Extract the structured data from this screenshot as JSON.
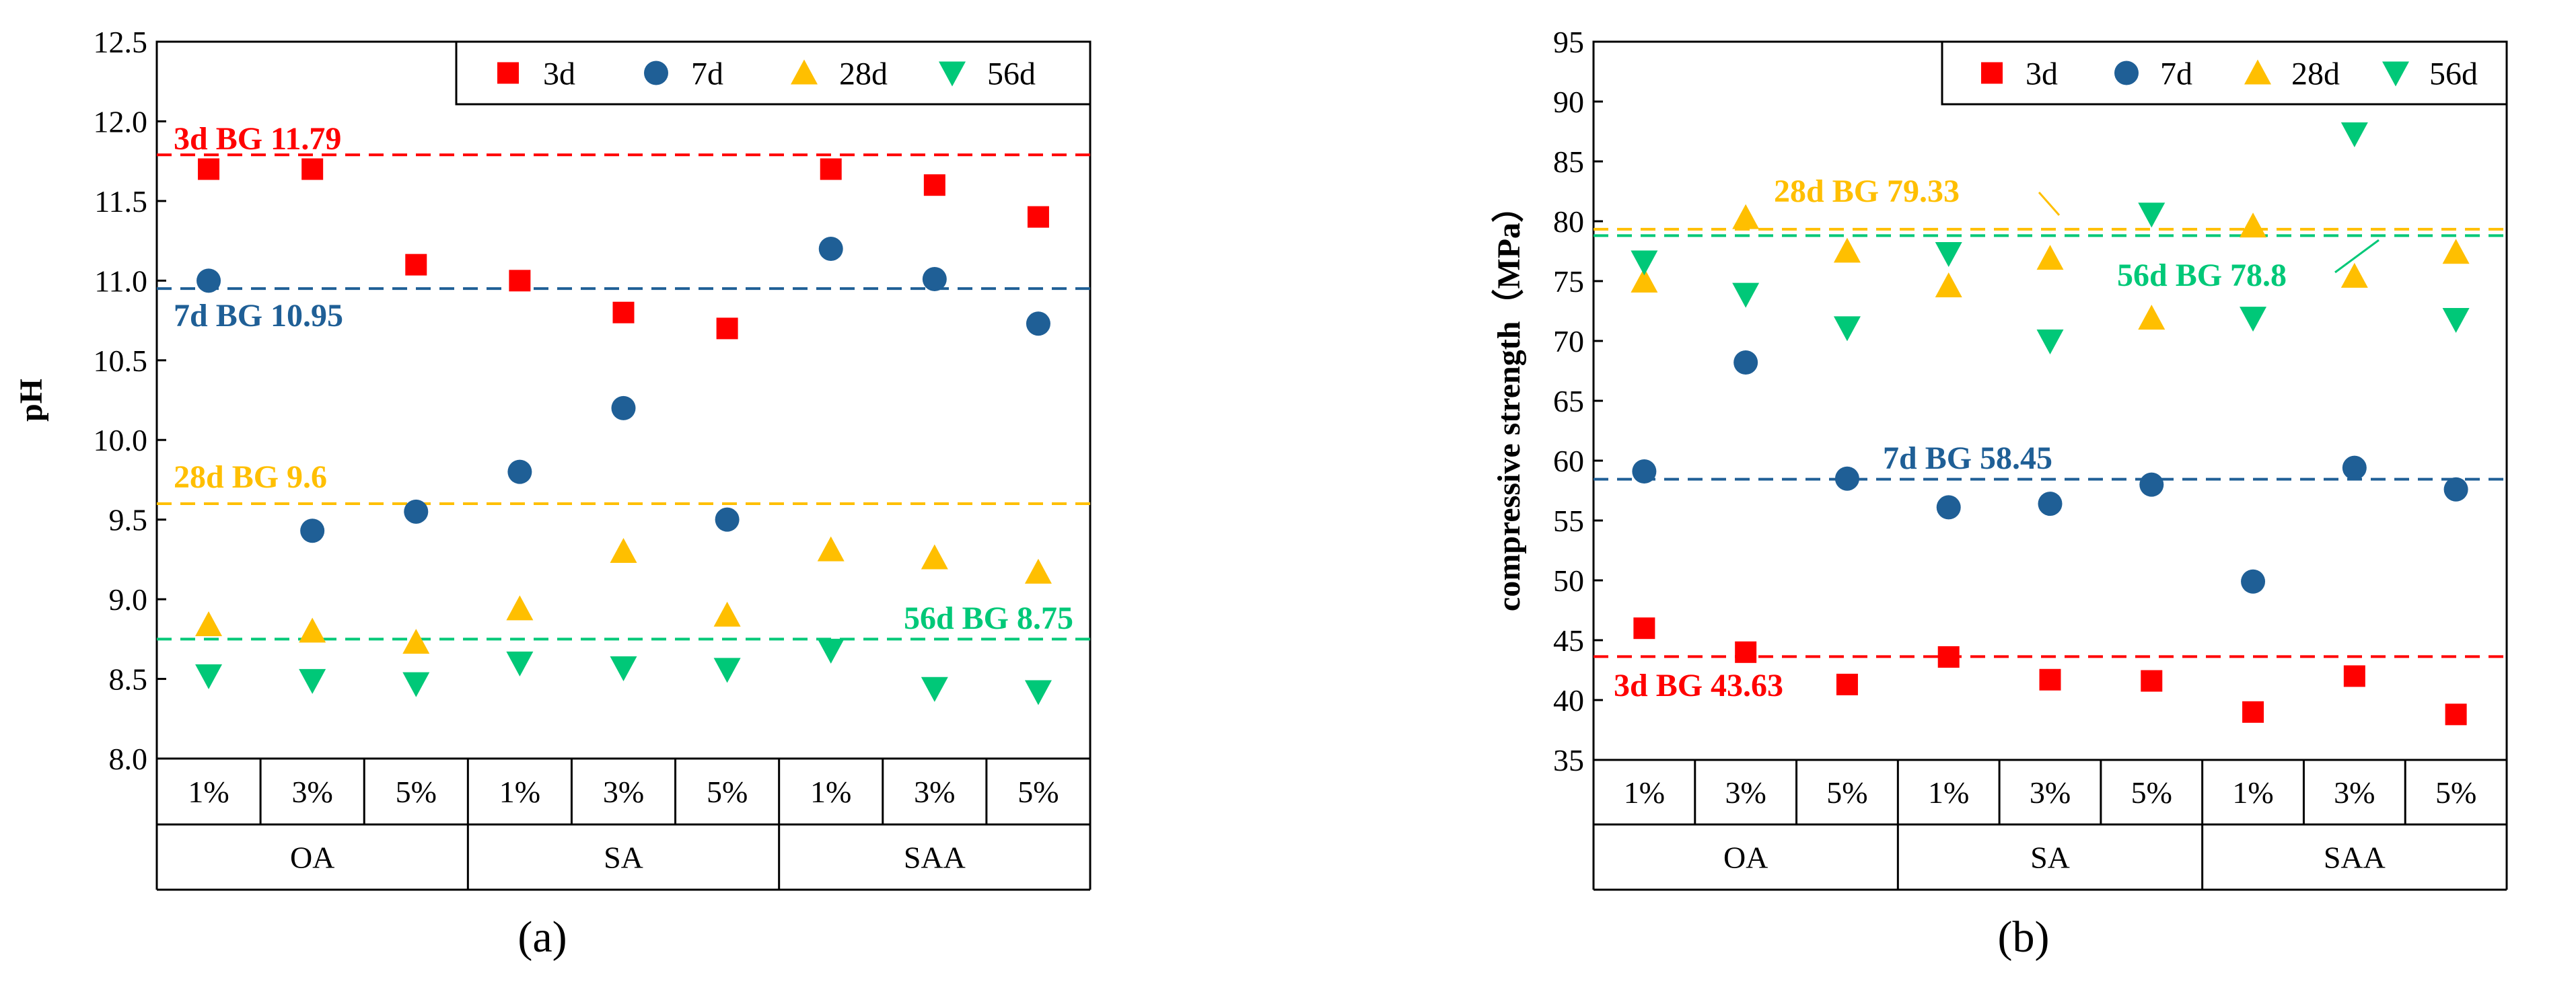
{
  "colors": {
    "3d": "#ff0000",
    "7d": "#1f5f96",
    "28d": "#ffbf00",
    "56d": "#00c878",
    "axis": "#000000"
  },
  "chart_data": [
    {
      "type": "scatter",
      "panel_label": "(a)",
      "ylabel": "pH",
      "ylim": [
        8.0,
        12.5
      ],
      "ytick_step": 0.5,
      "ytick_labels": [
        "8.0",
        "8.5",
        "9.0",
        "9.5",
        "10.0",
        "10.5",
        "11.0",
        "11.5",
        "12.0",
        "12.5"
      ],
      "groups": [
        "OA",
        "SA",
        "SAA"
      ],
      "categories": [
        "1%",
        "3%",
        "5%",
        "1%",
        "3%",
        "5%",
        "1%",
        "3%",
        "5%"
      ],
      "legend": [
        "3d",
        "7d",
        "28d",
        "56d"
      ],
      "legend_position": "top-right",
      "series": [
        {
          "name": "3d",
          "marker": "square",
          "values": [
            11.7,
            11.7,
            11.1,
            11.0,
            10.8,
            10.7,
            11.7,
            11.6,
            11.4
          ]
        },
        {
          "name": "7d",
          "marker": "circle",
          "values": [
            11.0,
            9.43,
            9.55,
            9.8,
            10.2,
            9.5,
            11.2,
            11.01,
            10.73
          ]
        },
        {
          "name": "28d",
          "marker": "triangle-up",
          "values": [
            8.84,
            8.8,
            8.73,
            8.94,
            9.3,
            8.9,
            9.31,
            9.26,
            9.17
          ]
        },
        {
          "name": "56d",
          "marker": "triangle-down",
          "values": [
            8.52,
            8.49,
            8.47,
            8.6,
            8.57,
            8.56,
            8.68,
            8.44,
            8.42
          ]
        }
      ],
      "baselines": [
        {
          "series": "3d",
          "value": 11.79,
          "label": "3d  BG  11.79"
        },
        {
          "series": "7d",
          "value": 10.95,
          "label": "7d  BG  10.95"
        },
        {
          "series": "28d",
          "value": 9.6,
          "label": "28d  BG  9.6"
        },
        {
          "series": "56d",
          "value": 8.75,
          "label": "56d  BG  8.75"
        }
      ]
    },
    {
      "type": "scatter",
      "panel_label": "(b)",
      "ylabel": "compressive strength（MPa）",
      "ylim": [
        35,
        95
      ],
      "ytick_step": 5,
      "ytick_labels": [
        "35",
        "40",
        "45",
        "50",
        "55",
        "60",
        "65",
        "70",
        "75",
        "80",
        "85",
        "90",
        "95"
      ],
      "groups": [
        "OA",
        "SA",
        "SAA"
      ],
      "categories": [
        "1%",
        "3%",
        "5%",
        "1%",
        "3%",
        "5%",
        "1%",
        "3%",
        "5%"
      ],
      "legend": [
        "3d",
        "7d",
        "28d",
        "56d"
      ],
      "legend_position": "top-right",
      "series": [
        {
          "name": "3d",
          "marker": "square",
          "values": [
            46.0,
            44.0,
            41.3,
            43.6,
            41.7,
            41.6,
            39.0,
            42.0,
            38.8
          ]
        },
        {
          "name": "7d",
          "marker": "circle",
          "values": [
            59.1,
            68.2,
            58.5,
            56.1,
            56.4,
            58.0,
            49.9,
            59.4,
            57.6
          ]
        },
        {
          "name": "28d",
          "marker": "triangle-up",
          "values": [
            75.0,
            80.3,
            77.5,
            74.6,
            76.9,
            71.9,
            79.6,
            75.4,
            77.4
          ]
        },
        {
          "name": "56d",
          "marker": "triangle-down",
          "values": [
            76.6,
            73.9,
            71.1,
            77.3,
            70.0,
            80.6,
            71.9,
            87.3,
            71.8
          ]
        }
      ],
      "baselines": [
        {
          "series": "3d",
          "value": 43.63,
          "label": "3d BG 43.63"
        },
        {
          "series": "7d",
          "value": 58.45,
          "label": "7d BG 58.45"
        },
        {
          "series": "28d",
          "value": 79.33,
          "label": "28d BG 79.33"
        },
        {
          "series": "56d",
          "value": 78.8,
          "label": "56d BG 78.8"
        }
      ]
    }
  ]
}
